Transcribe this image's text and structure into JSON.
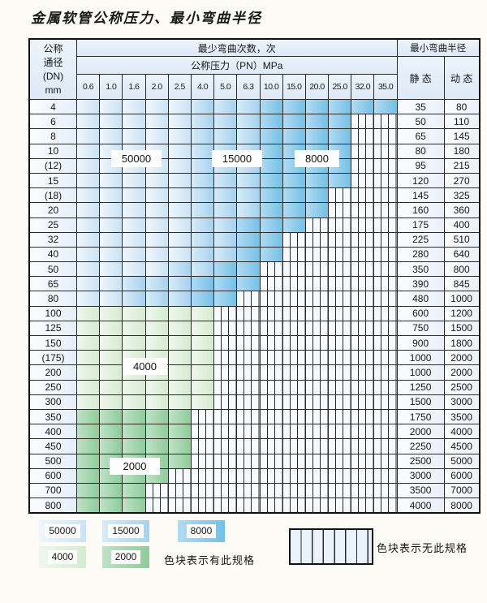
{
  "title": "金属软管公称压力、最小弯曲半径",
  "header": {
    "dn_label_lines": [
      "公称",
      "通径",
      "(DN)",
      "mm"
    ],
    "bend_cycles": "最少弯曲次数，次",
    "pressure": "公称压力（PN）MPa",
    "radius": "最小弯曲半径",
    "static": "静 态",
    "dynamic": "动 态",
    "pressure_values": [
      "0.6",
      "1.0",
      "1.6",
      "2.0",
      "2.5",
      "4.0",
      "5.0",
      "6.3",
      "10.0",
      "15.0",
      "20.0",
      "25.0",
      "32.0",
      "35.0"
    ]
  },
  "colors": {
    "blue50000": "#cbe3f5",
    "blue15000": "#a6d2ee",
    "blue8000": "#74c0e6",
    "green4000": "#d6ebd0",
    "green2000": "#8ecc9b",
    "grid_line": "#2b2b2b"
  },
  "cycle_labels": {
    "l50000": "50000",
    "l15000": "15000",
    "l8000": "8000",
    "l4000": "4000",
    "l2000": "2000"
  },
  "rows": [
    {
      "dn": "4",
      "static": "35",
      "dynamic": "80",
      "bands": [
        [
          "b1",
          5
        ],
        [
          "b2",
          3
        ],
        [
          "b3",
          6
        ]
      ],
      "hatch": 0
    },
    {
      "dn": "6",
      "static": "50",
      "dynamic": "110",
      "bands": [
        [
          "b1",
          5
        ],
        [
          "b2",
          3
        ],
        [
          "b3",
          4
        ]
      ],
      "hatch": 2
    },
    {
      "dn": "8",
      "static": "65",
      "dynamic": "145",
      "bands": [
        [
          "b1",
          5
        ],
        [
          "b2",
          3
        ],
        [
          "b3",
          4
        ]
      ],
      "hatch": 2
    },
    {
      "dn": "10",
      "static": "80",
      "dynamic": "180",
      "bands": [
        [
          "b1",
          5
        ],
        [
          "b2",
          3
        ],
        [
          "b3",
          4
        ]
      ],
      "hatch": 2
    },
    {
      "dn": "(12)",
      "static": "95",
      "dynamic": "215",
      "bands": [
        [
          "b1",
          5
        ],
        [
          "b2",
          3
        ],
        [
          "b3",
          4
        ]
      ],
      "hatch": 2
    },
    {
      "dn": "15",
      "static": "120",
      "dynamic": "270",
      "bands": [
        [
          "b1",
          5
        ],
        [
          "b2",
          3
        ],
        [
          "b3",
          4
        ]
      ],
      "hatch": 2
    },
    {
      "dn": "(18)",
      "static": "145",
      "dynamic": "325",
      "bands": [
        [
          "b1",
          5
        ],
        [
          "b2",
          3
        ],
        [
          "b3",
          3
        ]
      ],
      "hatch": 3
    },
    {
      "dn": "20",
      "static": "160",
      "dynamic": "360",
      "bands": [
        [
          "b1",
          5
        ],
        [
          "b2",
          3
        ],
        [
          "b3",
          3
        ]
      ],
      "hatch": 3
    },
    {
      "dn": "25",
      "static": "175",
      "dynamic": "400",
      "bands": [
        [
          "b1",
          5
        ],
        [
          "b2",
          2
        ],
        [
          "b3",
          3
        ]
      ],
      "hatch": 4
    },
    {
      "dn": "32",
      "static": "225",
      "dynamic": "510",
      "bands": [
        [
          "b1",
          5
        ],
        [
          "b2",
          2
        ],
        [
          "b3",
          2
        ]
      ],
      "hatch": 5
    },
    {
      "dn": "40",
      "static": "280",
      "dynamic": "640",
      "bands": [
        [
          "b1",
          5
        ],
        [
          "b2",
          2
        ],
        [
          "b3",
          2
        ]
      ],
      "hatch": 5
    },
    {
      "dn": "50",
      "static": "350",
      "dynamic": "800",
      "bands": [
        [
          "b1",
          4
        ],
        [
          "b2",
          2
        ],
        [
          "b3",
          2
        ]
      ],
      "hatch": 6
    },
    {
      "dn": "65",
      "static": "390",
      "dynamic": "845",
      "bands": [
        [
          "b1",
          2
        ],
        [
          "b2",
          3
        ],
        [
          "b3",
          3
        ]
      ],
      "hatch": 6
    },
    {
      "dn": "80",
      "static": "480",
      "dynamic": "1000",
      "bands": [
        [
          "b1",
          2
        ],
        [
          "b2",
          3
        ],
        [
          "b3",
          2
        ]
      ],
      "hatch": 7
    },
    {
      "dn": "100",
      "static": "600",
      "dynamic": "1200",
      "bands": [
        [
          "g1",
          6
        ]
      ],
      "hatch": 8
    },
    {
      "dn": "125",
      "static": "750",
      "dynamic": "1500",
      "bands": [
        [
          "g1",
          6
        ]
      ],
      "hatch": 8
    },
    {
      "dn": "150",
      "static": "900",
      "dynamic": "1800",
      "bands": [
        [
          "g1",
          6
        ]
      ],
      "hatch": 8
    },
    {
      "dn": "(175)",
      "static": "1000",
      "dynamic": "2000",
      "bands": [
        [
          "g1",
          6
        ]
      ],
      "hatch": 8
    },
    {
      "dn": "200",
      "static": "1000",
      "dynamic": "2000",
      "bands": [
        [
          "g1",
          6
        ]
      ],
      "hatch": 8
    },
    {
      "dn": "250",
      "static": "1250",
      "dynamic": "2500",
      "bands": [
        [
          "g1",
          6
        ]
      ],
      "hatch": 8
    },
    {
      "dn": "300",
      "static": "1500",
      "dynamic": "3000",
      "bands": [
        [
          "g1",
          6
        ]
      ],
      "hatch": 8
    },
    {
      "dn": "350",
      "static": "1750",
      "dynamic": "3500",
      "bands": [
        [
          "g2",
          5
        ]
      ],
      "hatch": 9
    },
    {
      "dn": "400",
      "static": "2000",
      "dynamic": "4000",
      "bands": [
        [
          "g2",
          5
        ]
      ],
      "hatch": 9
    },
    {
      "dn": "450",
      "static": "2250",
      "dynamic": "4500",
      "bands": [
        [
          "g2",
          5
        ]
      ],
      "hatch": 9
    },
    {
      "dn": "500",
      "static": "2500",
      "dynamic": "5000",
      "bands": [
        [
          "g2",
          5
        ]
      ],
      "hatch": 9
    },
    {
      "dn": "600",
      "static": "3000",
      "dynamic": "6000",
      "bands": [
        [
          "g2",
          4
        ]
      ],
      "hatch": 10
    },
    {
      "dn": "700",
      "static": "3500",
      "dynamic": "7000",
      "bands": [
        [
          "g2",
          3
        ]
      ],
      "hatch": 11
    },
    {
      "dn": "800",
      "static": "4000",
      "dynamic": "8000",
      "bands": [
        [
          "g2",
          3
        ]
      ],
      "hatch": 11
    }
  ],
  "legend": {
    "items": [
      {
        "label": "50000",
        "band": "b1"
      },
      {
        "label": "15000",
        "band": "b2"
      },
      {
        "label": "8000",
        "band": "b3"
      },
      {
        "label": "4000",
        "band": "g1"
      },
      {
        "label": "2000",
        "band": "g2"
      }
    ],
    "has_spec": "色块表示有此规格",
    "no_spec": "色块表示无此规格"
  }
}
